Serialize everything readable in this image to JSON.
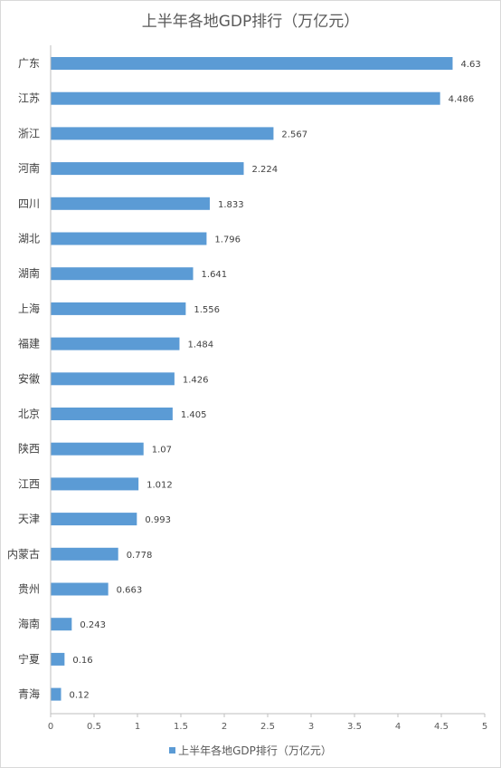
{
  "chart_data": {
    "type": "bar",
    "orientation": "horizontal",
    "title": "上半年各地GDP排行（万亿元）",
    "categories": [
      "广东",
      "江苏",
      "浙江",
      "河南",
      "四川",
      "湖北",
      "湖南",
      "上海",
      "福建",
      "安徽",
      "北京",
      "陕西",
      "江西",
      "天津",
      "内蒙古",
      "贵州",
      "海南",
      "宁夏",
      "青海"
    ],
    "series": [
      {
        "name": "上半年各地GDP排行（万亿元）",
        "values": [
          4.63,
          4.486,
          2.567,
          2.224,
          1.833,
          1.796,
          1.641,
          1.556,
          1.484,
          1.426,
          1.405,
          1.07,
          1.012,
          0.993,
          0.778,
          0.663,
          0.243,
          0.16,
          0.12
        ],
        "labels": [
          "4.63",
          "4.486",
          "2.567",
          "2.224",
          "1.833",
          "1.796",
          "1.641",
          "1.556",
          "1.484",
          "1.426",
          "1.405",
          "1.07",
          "1.012",
          "0.993",
          "0.778",
          "0.663",
          "0.243",
          "0.16",
          "0.12"
        ],
        "color": "#5b9bd5"
      }
    ],
    "xlim": [
      0,
      5
    ],
    "xticks": [
      "0",
      "0.5",
      "1",
      "1.5",
      "2",
      "2.5",
      "3",
      "3.5",
      "4",
      "4.5",
      "5"
    ],
    "grid": false,
    "legend_position": "bottom"
  }
}
